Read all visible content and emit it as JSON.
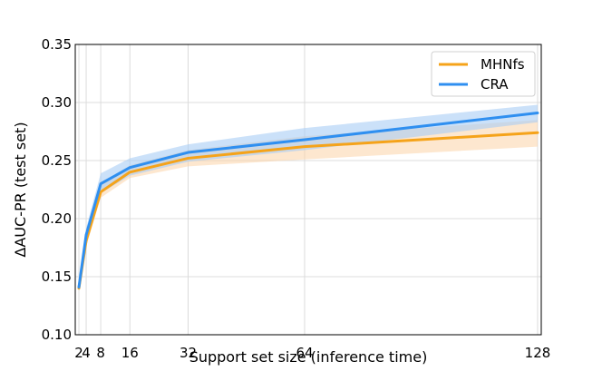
{
  "chart_data": {
    "type": "line",
    "xlabel": "Support set size (inference time)",
    "ylabel": "ΔAUC-PR (test set)",
    "x": [
      2,
      4,
      8,
      16,
      32,
      64,
      128
    ],
    "xticks": [
      2,
      4,
      8,
      16,
      32,
      64,
      128
    ],
    "xtick_labels": [
      "2",
      "4",
      "8",
      "16",
      "32",
      "64",
      "128"
    ],
    "xlim": [
      1,
      129
    ],
    "ylim": [
      0.1,
      0.35
    ],
    "yticks": [
      0.1,
      0.15,
      0.2,
      0.25,
      0.3,
      0.35
    ],
    "ytick_labels": [
      "0.10",
      "0.15",
      "0.20",
      "0.25",
      "0.30",
      "0.35"
    ],
    "grid": true,
    "legend_position": "top-right",
    "series": [
      {
        "name": "MHNfs",
        "color": "#f5a31a",
        "band_color": "#fbd3a8",
        "values": [
          0.14,
          0.181,
          0.223,
          0.24,
          0.252,
          0.262,
          0.274
        ],
        "lower": [
          0.137,
          0.176,
          0.218,
          0.235,
          0.245,
          0.251,
          0.262
        ],
        "upper": [
          0.144,
          0.186,
          0.229,
          0.246,
          0.259,
          0.271,
          0.285
        ]
      },
      {
        "name": "CRA",
        "color": "#2f8ff0",
        "band_color": "#a8cdf5",
        "values": [
          0.141,
          0.186,
          0.23,
          0.244,
          0.257,
          0.268,
          0.291
        ],
        "lower": [
          0.137,
          0.18,
          0.222,
          0.237,
          0.249,
          0.259,
          0.283
        ],
        "upper": [
          0.146,
          0.192,
          0.239,
          0.252,
          0.264,
          0.278,
          0.298
        ]
      }
    ]
  }
}
